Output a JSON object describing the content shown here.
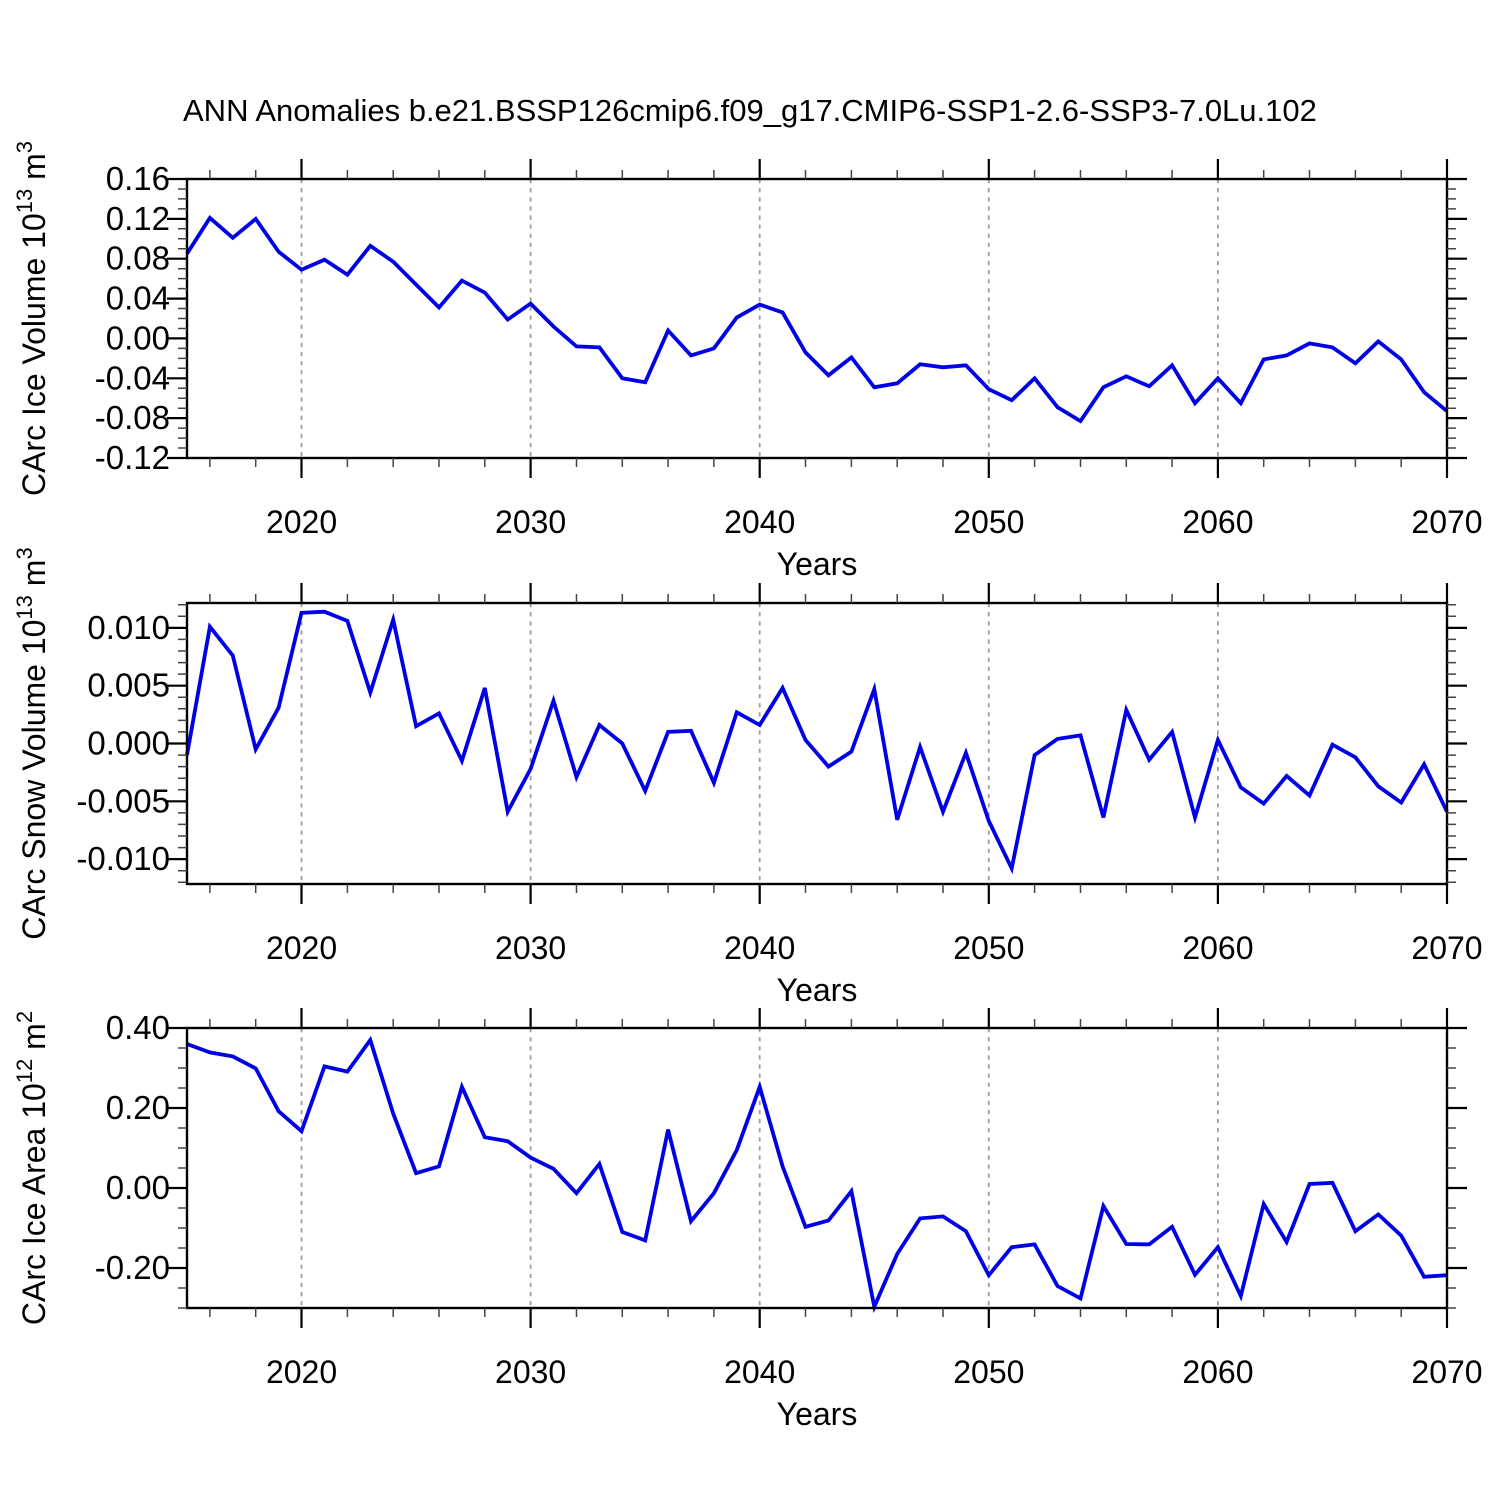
{
  "title": "ANN Anomalies b.e21.BSSP126cmip6.f09_g17.CMIP6-SSP1-2.6-SSP3-7.0Lu.102",
  "colors": {
    "line": "#0000e6",
    "grid": "#9e9e9e",
    "axis": "#000000",
    "minor_tick": "#444444",
    "background": "#ffffff"
  },
  "chart_data": [
    {
      "id": "ice-volume",
      "type": "line",
      "title": "ANN Anomalies b.e21.BSSP126cmip6.f09_g17.CMIP6-SSP1-2.6-SSP3-7.0Lu.102",
      "ylabel": "CArc Ice Volume 10^13 m^3",
      "ylabel_parts": [
        [
          "CArc Ice Volume 10",
          0
        ],
        [
          "13",
          1
        ],
        [
          " m",
          0
        ],
        [
          "3",
          1
        ]
      ],
      "xlabel": "Years",
      "x": [
        2015,
        2016,
        2017,
        2018,
        2019,
        2020,
        2021,
        2022,
        2023,
        2024,
        2025,
        2026,
        2027,
        2028,
        2029,
        2030,
        2031,
        2032,
        2033,
        2034,
        2035,
        2036,
        2037,
        2038,
        2039,
        2040,
        2041,
        2042,
        2043,
        2044,
        2045,
        2046,
        2047,
        2048,
        2049,
        2050,
        2051,
        2052,
        2053,
        2054,
        2055,
        2056,
        2057,
        2058,
        2059,
        2060,
        2061,
        2062,
        2063,
        2064,
        2065,
        2066,
        2067,
        2068,
        2069,
        2070
      ],
      "values": [
        0.085,
        0.121,
        0.101,
        0.12,
        0.087,
        0.069,
        0.079,
        0.064,
        0.093,
        0.077,
        0.054,
        0.031,
        0.058,
        0.046,
        0.019,
        0.035,
        0.012,
        -0.008,
        -0.009,
        -0.04,
        -0.044,
        0.008,
        -0.017,
        -0.01,
        0.021,
        0.034,
        0.026,
        -0.014,
        -0.037,
        -0.019,
        -0.049,
        -0.045,
        -0.026,
        -0.029,
        -0.027,
        -0.051,
        -0.062,
        -0.04,
        -0.069,
        -0.083,
        -0.049,
        -0.038,
        -0.048,
        -0.027,
        -0.065,
        -0.04,
        -0.065,
        -0.021,
        -0.017,
        -0.005,
        -0.009,
        -0.025,
        -0.003,
        -0.021,
        -0.054,
        -0.073
      ],
      "xlim": [
        2015,
        2070
      ],
      "ylim": [
        -0.12,
        0.16
      ],
      "yticks": [
        0.16,
        0.12,
        0.08,
        0.04,
        0.0,
        -0.04,
        -0.08,
        -0.12
      ],
      "ytick_labels": [
        "0.16",
        "0.12",
        "0.08",
        "0.04",
        "0.00",
        "-0.04",
        "-0.08",
        "-0.12"
      ],
      "ytick_minor_step": 0.01,
      "xticks": [
        2020,
        2030,
        2040,
        2050,
        2060,
        2070
      ],
      "xtick_labels": [
        "2020",
        "2030",
        "2040",
        "2050",
        "2060",
        "2070"
      ],
      "xtick_minor_step": 2,
      "grid_x": [
        2020,
        2030,
        2040,
        2050,
        2060
      ],
      "grid_on": true,
      "legend": "none"
    },
    {
      "id": "snow-volume",
      "type": "line",
      "title": "",
      "ylabel": "CArc Snow Volume 10^13 m^3",
      "ylabel_parts": [
        [
          "CArc Snow Volume 10",
          0
        ],
        [
          "13",
          1
        ],
        [
          " m",
          0
        ],
        [
          "3",
          1
        ]
      ],
      "xlabel": "Years",
      "x": [
        2015,
        2016,
        2017,
        2018,
        2019,
        2020,
        2021,
        2022,
        2023,
        2024,
        2025,
        2026,
        2027,
        2028,
        2029,
        2030,
        2031,
        2032,
        2033,
        2034,
        2035,
        2036,
        2037,
        2038,
        2039,
        2040,
        2041,
        2042,
        2043,
        2044,
        2045,
        2046,
        2047,
        2048,
        2049,
        2050,
        2051,
        2052,
        2053,
        2054,
        2055,
        2056,
        2057,
        2058,
        2059,
        2060,
        2061,
        2062,
        2063,
        2064,
        2065,
        2066,
        2067,
        2068,
        2069,
        2070
      ],
      "values": [
        -0.001,
        0.0101,
        0.0076,
        -0.0005,
        0.0031,
        0.0113,
        0.0114,
        0.0106,
        0.0044,
        0.0107,
        0.0015,
        0.0026,
        -0.0015,
        0.0048,
        -0.0059,
        -0.0022,
        0.0037,
        -0.0029,
        0.0016,
        0.0,
        -0.0041,
        0.001,
        0.0011,
        -0.0034,
        0.0027,
        0.0016,
        0.0048,
        0.0003,
        -0.002,
        -0.0007,
        0.0047,
        -0.0066,
        -0.0003,
        -0.0059,
        -0.0008,
        -0.0067,
        -0.0108,
        -0.001,
        0.0004,
        0.0007,
        -0.0064,
        0.0029,
        -0.0014,
        0.001,
        -0.0064,
        0.0003,
        -0.0038,
        -0.0052,
        -0.0028,
        -0.0045,
        -0.0001,
        -0.0012,
        -0.0037,
        -0.0051,
        -0.0018,
        -0.0059
      ],
      "xlim": [
        2015,
        2070
      ],
      "ylim": [
        -0.01215,
        0.01215
      ],
      "yticks": [
        0.01,
        0.005,
        0.0,
        -0.005,
        -0.01
      ],
      "ytick_labels": [
        "0.010",
        "0.005",
        "0.000",
        "-0.005",
        "-0.010"
      ],
      "ytick_minor_step": 0.001,
      "xticks": [
        2020,
        2030,
        2040,
        2050,
        2060,
        2070
      ],
      "xtick_labels": [
        "2020",
        "2030",
        "2040",
        "2050",
        "2060",
        "2070"
      ],
      "xtick_minor_step": 2,
      "grid_x": [
        2020,
        2030,
        2040,
        2050,
        2060
      ],
      "grid_on": true,
      "legend": "none"
    },
    {
      "id": "ice-area",
      "type": "line",
      "title": "",
      "ylabel": "CArc Ice Area 10^12 m^2",
      "ylabel_parts": [
        [
          "CArc Ice Area 10",
          0
        ],
        [
          "12",
          1
        ],
        [
          " m",
          0
        ],
        [
          "2",
          1
        ]
      ],
      "xlabel": "Years",
      "x": [
        2015,
        2016,
        2017,
        2018,
        2019,
        2020,
        2021,
        2022,
        2023,
        2024,
        2025,
        2026,
        2027,
        2028,
        2029,
        2030,
        2031,
        2032,
        2033,
        2034,
        2035,
        2036,
        2037,
        2038,
        2039,
        2040,
        2041,
        2042,
        2043,
        2044,
        2045,
        2046,
        2047,
        2048,
        2049,
        2050,
        2051,
        2052,
        2053,
        2054,
        2055,
        2056,
        2057,
        2058,
        2059,
        2060,
        2061,
        2062,
        2063,
        2064,
        2065,
        2066,
        2067,
        2068,
        2069,
        2070
      ],
      "values": [
        0.36,
        0.339,
        0.329,
        0.299,
        0.192,
        0.142,
        0.304,
        0.291,
        0.37,
        0.186,
        0.037,
        0.054,
        0.253,
        0.127,
        0.117,
        0.076,
        0.048,
        -0.013,
        0.06,
        -0.11,
        -0.131,
        0.146,
        -0.083,
        -0.013,
        0.095,
        0.253,
        0.054,
        -0.097,
        -0.081,
        -0.008,
        -0.297,
        -0.165,
        -0.076,
        -0.071,
        -0.108,
        -0.218,
        -0.148,
        -0.141,
        -0.245,
        -0.276,
        -0.045,
        -0.14,
        -0.141,
        -0.097,
        -0.217,
        -0.148,
        -0.27,
        -0.04,
        -0.135,
        0.01,
        0.013,
        -0.108,
        -0.066,
        -0.119,
        -0.222,
        -0.218
      ],
      "xlim": [
        2015,
        2070
      ],
      "ylim": [
        -0.3,
        0.4
      ],
      "yticks": [
        0.4,
        0.2,
        0.0,
        -0.2
      ],
      "ytick_labels": [
        "0.40",
        "0.20",
        "0.00",
        "-0.20"
      ],
      "ytick_minor_step": 0.05,
      "xticks": [
        2020,
        2030,
        2040,
        2050,
        2060,
        2070
      ],
      "xtick_labels": [
        "2020",
        "2030",
        "2040",
        "2050",
        "2060",
        "2070"
      ],
      "xtick_minor_step": 2,
      "grid_x": [
        2020,
        2030,
        2040,
        2050,
        2060
      ],
      "grid_on": true,
      "legend": "none"
    }
  ]
}
